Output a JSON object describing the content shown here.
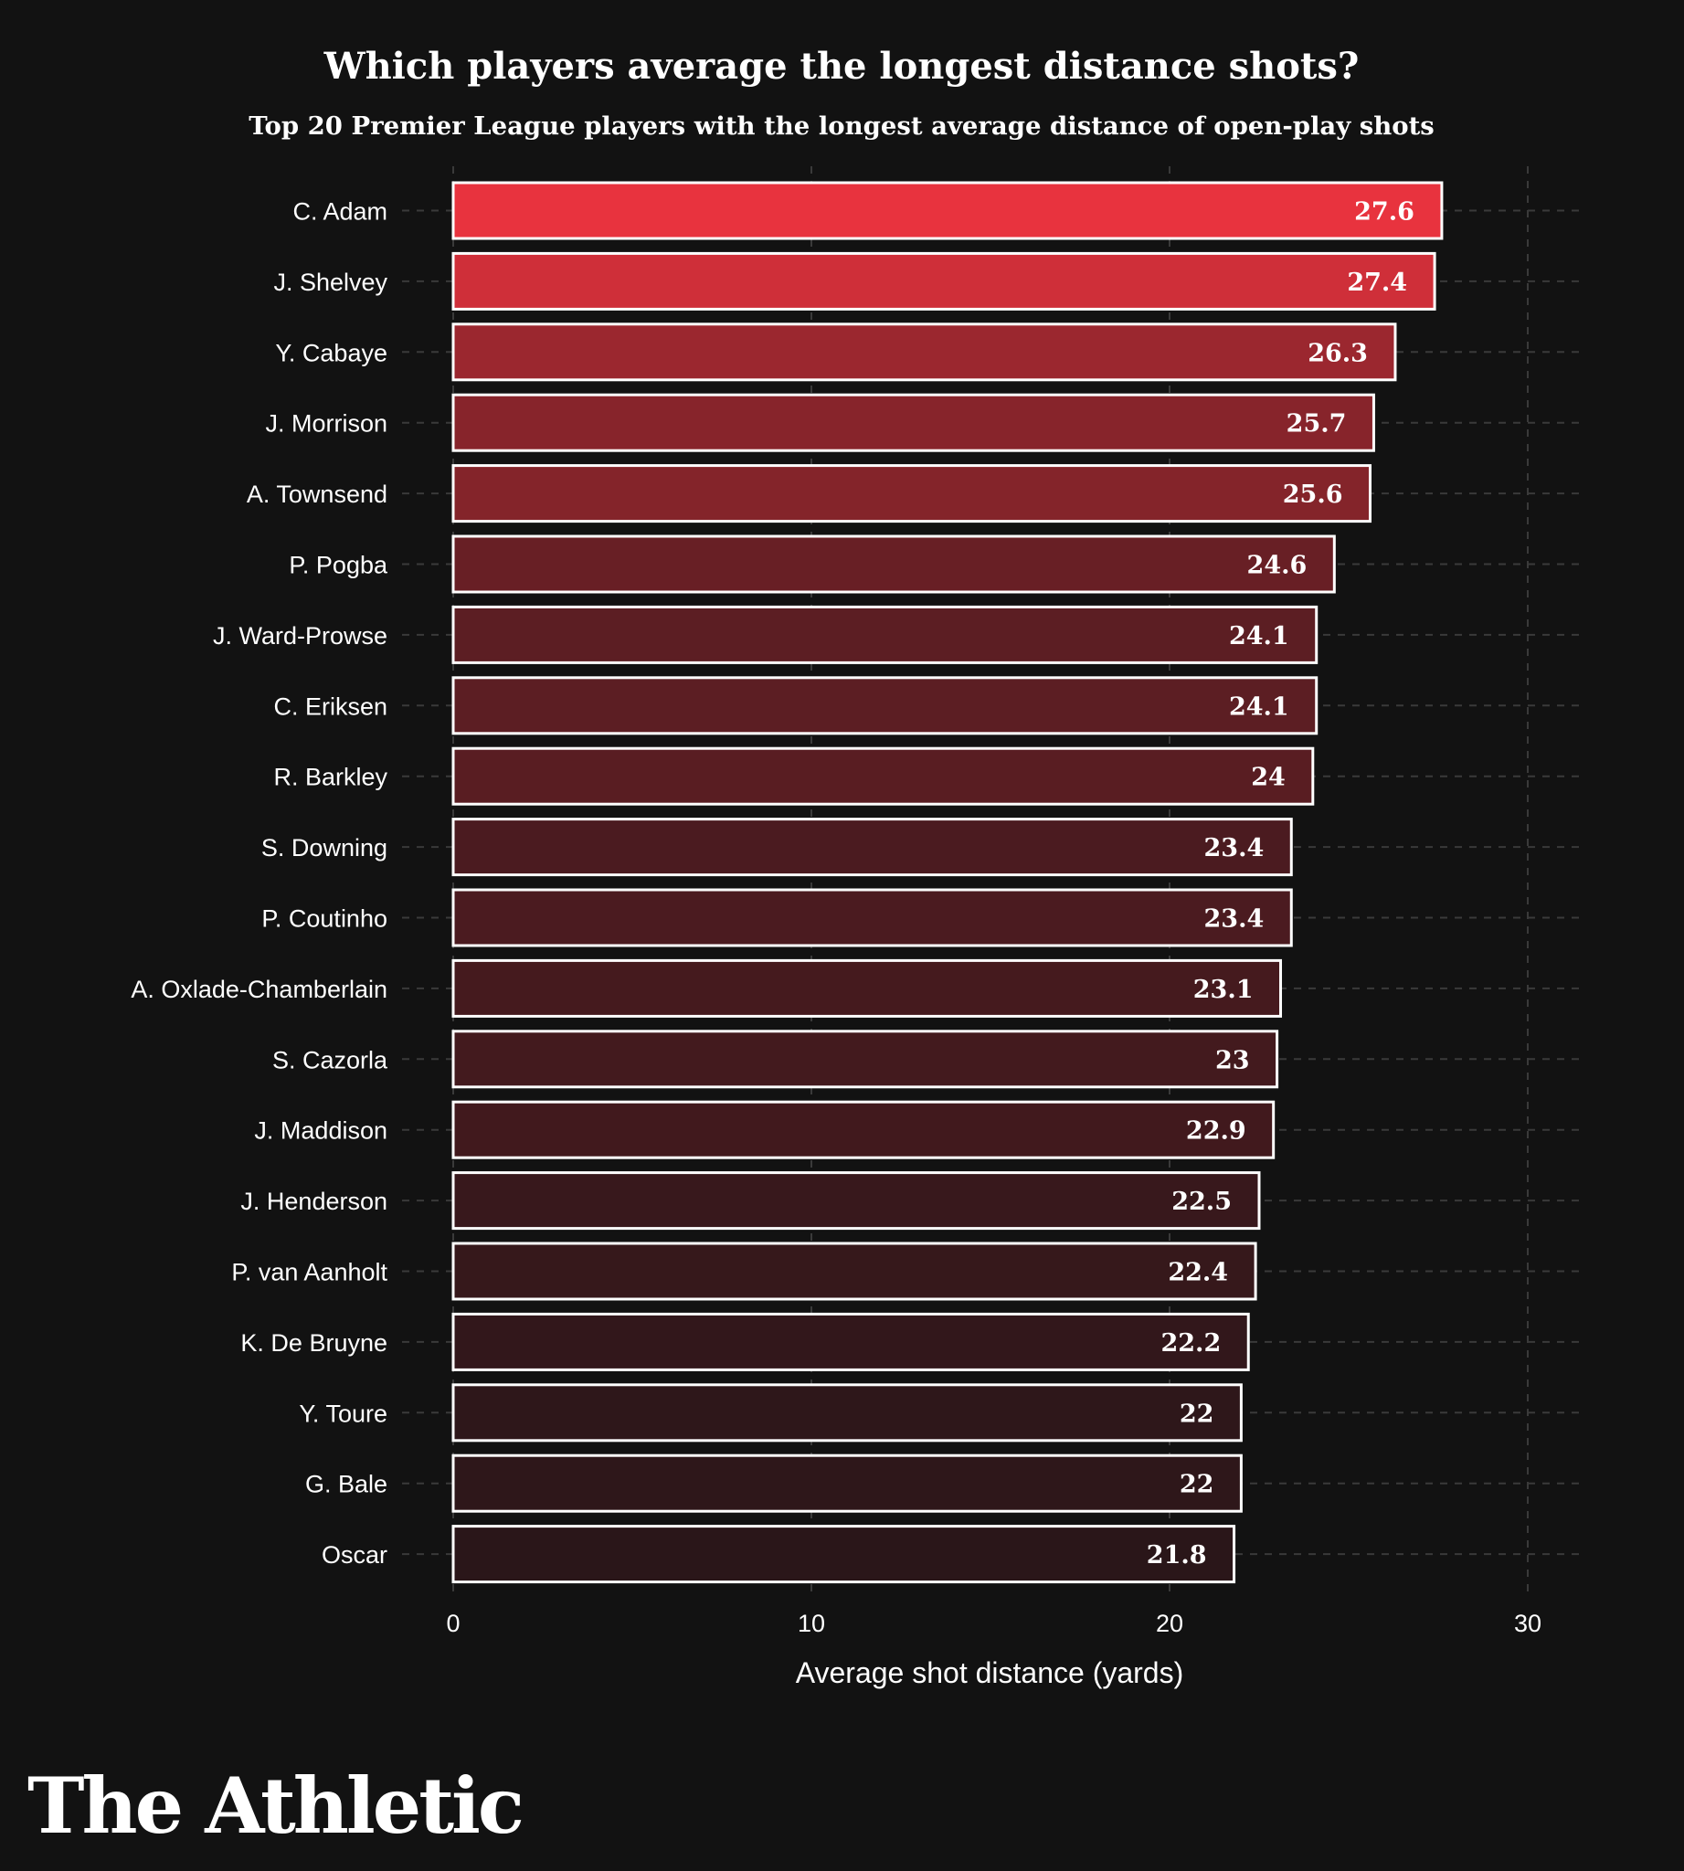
{
  "colors": {
    "background": "#121212",
    "bar_top": "#e8333e",
    "bar_bottom": "#2a1619",
    "bar_outline": "#ffffff",
    "grid": "#3a3a3a",
    "text": "#ffffff"
  },
  "brand": {
    "logo_text": "The Athletic"
  },
  "chart_data": {
    "type": "bar",
    "orientation": "horizontal",
    "title": "Which players average the longest distance shots?",
    "subtitle": "Top 20 Premier League players with the longest average distance of open-play shots",
    "xlabel": "Average shot distance (yards)",
    "ylabel": "",
    "xlim": [
      0,
      31.5
    ],
    "xticks": [
      0,
      10,
      20,
      30
    ],
    "grid": true,
    "categories": [
      "C. Adam",
      "J. Shelvey",
      "Y. Cabaye",
      "J. Morrison",
      "A. Townsend",
      "P. Pogba",
      "J. Ward-Prowse",
      "C. Eriksen",
      "R. Barkley",
      "S. Downing",
      "P. Coutinho",
      "A. Oxlade-Chamberlain",
      "S. Cazorla",
      "J. Maddison",
      "J. Henderson",
      "P. van Aanholt",
      "K. De Bruyne",
      "Y. Toure",
      "G. Bale",
      "Oscar"
    ],
    "values": [
      27.6,
      27.4,
      26.3,
      25.7,
      25.6,
      24.6,
      24.1,
      24.1,
      24,
      23.4,
      23.4,
      23.1,
      23,
      22.9,
      22.5,
      22.4,
      22.2,
      22,
      22,
      21.8
    ],
    "value_labels": [
      "27.6",
      "27.4",
      "26.3",
      "25.7",
      "25.6",
      "24.6",
      "24.1",
      "24.1",
      "24",
      "23.4",
      "23.4",
      "23.1",
      "23",
      "22.9",
      "22.5",
      "22.4",
      "22.2",
      "22",
      "22",
      "21.8"
    ]
  }
}
